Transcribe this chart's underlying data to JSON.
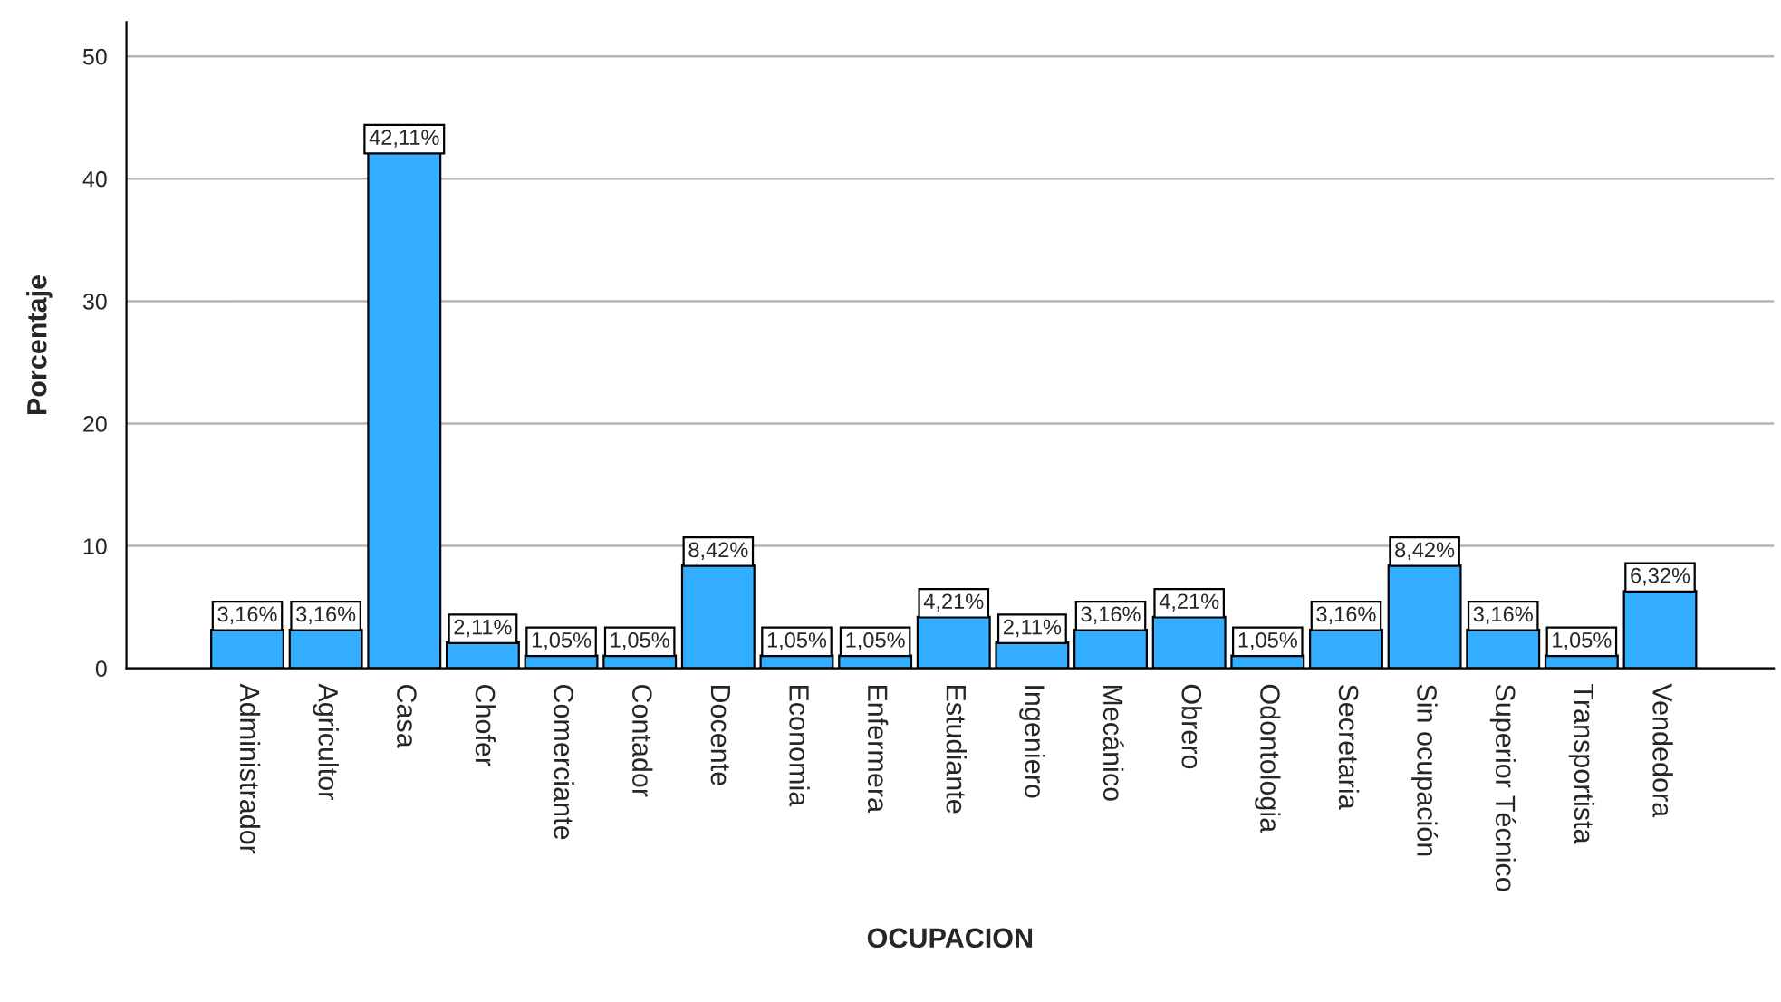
{
  "chart_data": {
    "type": "bar",
    "xlabel": "OCUPACION",
    "ylabel": "Porcentaje",
    "categories": [
      "Administrador",
      "Agricultor",
      "Casa",
      "Chofer",
      "Comerciante",
      "Contador",
      "Docente",
      "Economia",
      "Enfermera",
      "Estudiante",
      "Ingeniero",
      "Mecánico",
      "Obrero",
      "Odontologia",
      "Secretaria",
      "Sin ocupación",
      "Superior Técnico",
      "Transportista",
      "Vendedora"
    ],
    "values": [
      3.16,
      3.16,
      42.11,
      2.11,
      1.05,
      1.05,
      8.42,
      1.05,
      1.05,
      4.21,
      2.11,
      3.16,
      4.21,
      1.05,
      3.16,
      8.42,
      3.16,
      1.05,
      6.32
    ],
    "value_labels": [
      "3,16%",
      "3,16%",
      "42,11%",
      "2,11%",
      "1,05%",
      "1,05%",
      "8,42%",
      "1,05%",
      "1,05%",
      "4,21%",
      "2,11%",
      "3,16%",
      "4,21%",
      "1,05%",
      "3,16%",
      "8,42%",
      "3,16%",
      "1,05%",
      "6,32%"
    ],
    "color": "#33adff",
    "ylim": [
      0,
      52.8
    ],
    "yticks": [
      0,
      10,
      20,
      30,
      40,
      50
    ],
    "grid": "y"
  }
}
